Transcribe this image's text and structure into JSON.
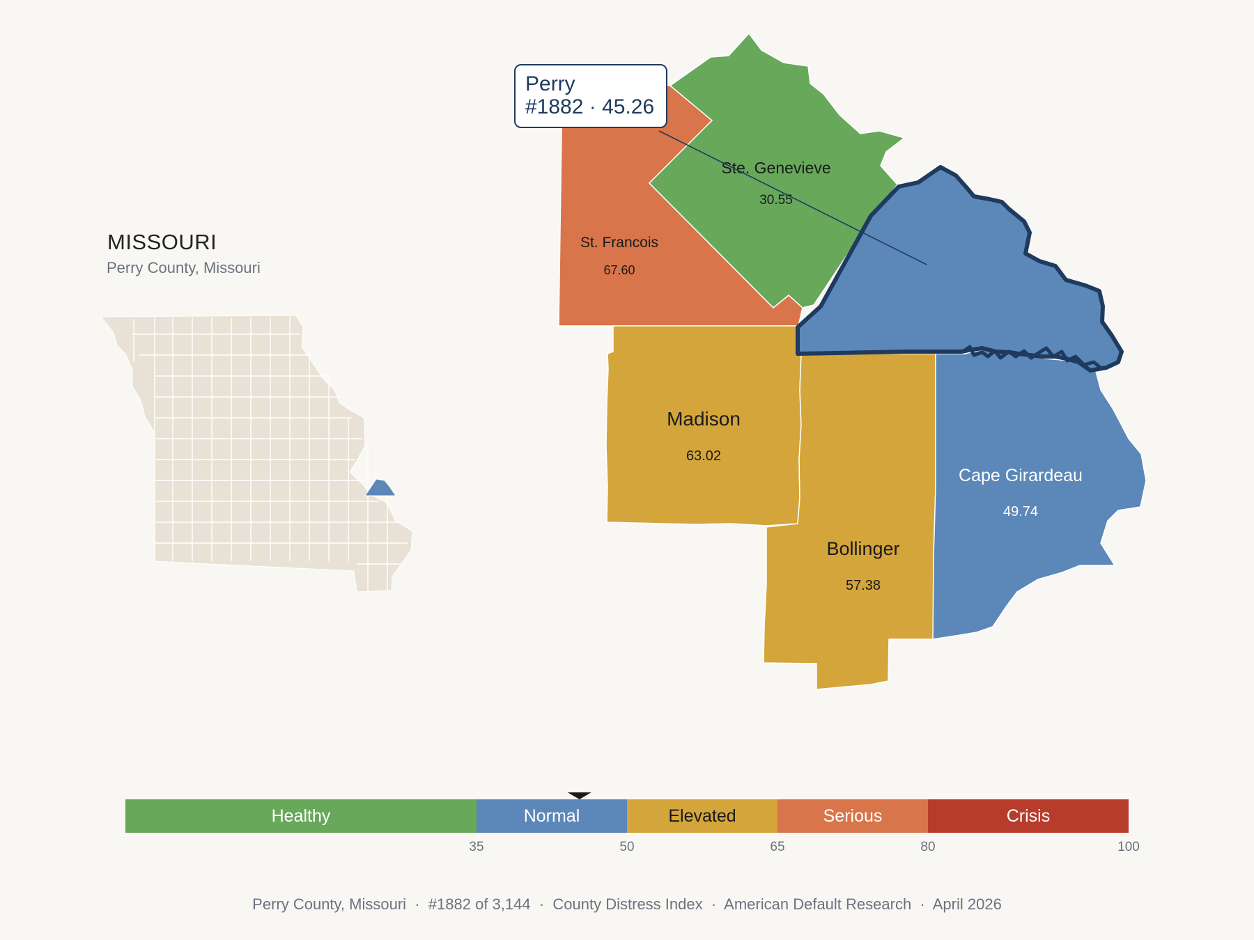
{
  "state": {
    "name": "MISSOURI",
    "subtitle": "Perry County, Missouri",
    "highlight_color": "#5b88b8",
    "base_color": "#e8e2d6"
  },
  "callout": {
    "name": "Perry",
    "detail": "#1882 · 45.26"
  },
  "counties": [
    {
      "id": "st-francois",
      "name": "St. Francois",
      "score": "67.60",
      "category": "Serious",
      "color": "#d9754a",
      "text_color": "#1a1a1a"
    },
    {
      "id": "ste-genevieve",
      "name": "Ste. Genevieve",
      "score": "30.55",
      "category": "Healthy",
      "color": "#67a85a",
      "text_color": "#1a1a1a"
    },
    {
      "id": "perry",
      "name": "Perry",
      "score": "45.26",
      "category": "Normal",
      "color": "#5b88b8",
      "selected": true
    },
    {
      "id": "madison",
      "name": "Madison",
      "score": "63.02",
      "category": "Elevated",
      "color": "#d4a53a",
      "text_color": "#1a1a1a"
    },
    {
      "id": "bollinger",
      "name": "Bollinger",
      "score": "57.38",
      "category": "Elevated",
      "color": "#d4a53a",
      "text_color": "#1a1a1a"
    },
    {
      "id": "cape-girardeau",
      "name": "Cape Girardeau",
      "score": "49.74",
      "category": "Normal",
      "color": "#5b88b8",
      "text_color": "#ffffff"
    }
  ],
  "legend": {
    "bands": [
      {
        "label": "Healthy",
        "from": 0,
        "to": 35,
        "color": "#67a85a",
        "text_color": "#ffffff"
      },
      {
        "label": "Normal",
        "from": 35,
        "to": 50,
        "color": "#5b88b8",
        "text_color": "#ffffff"
      },
      {
        "label": "Elevated",
        "from": 50,
        "to": 65,
        "color": "#d4a53a",
        "text_color": "#1a1a1a"
      },
      {
        "label": "Serious",
        "from": 65,
        "to": 80,
        "color": "#d9754a",
        "text_color": "#ffffff"
      },
      {
        "label": "Crisis",
        "from": 80,
        "to": 100,
        "color": "#b83c2c",
        "text_color": "#ffffff"
      }
    ],
    "ticks": [
      "35",
      "50",
      "65",
      "80",
      "100"
    ],
    "marker_value": 45.26
  },
  "footer": {
    "items": [
      "Perry County, Missouri",
      "#1882 of 3,144",
      "County Distress Index",
      "American Default Research",
      "April 2026"
    ],
    "separator": "  ·  "
  }
}
